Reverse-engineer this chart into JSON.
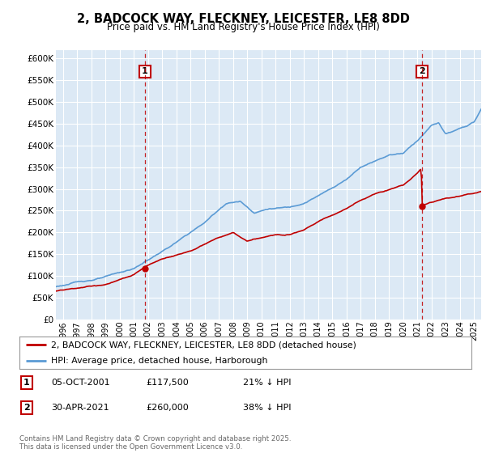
{
  "title": "2, BADCOCK WAY, FLECKNEY, LEICESTER, LE8 8DD",
  "subtitle": "Price paid vs. HM Land Registry's House Price Index (HPI)",
  "ylim": [
    0,
    620000
  ],
  "yticks": [
    0,
    50000,
    100000,
    150000,
    200000,
    250000,
    300000,
    350000,
    400000,
    450000,
    500000,
    550000,
    600000
  ],
  "sale1_x": 2001.78,
  "sale1_y": 117500,
  "sale1_label": "1",
  "sale2_x": 2021.33,
  "sale2_y": 260000,
  "sale2_label": "2",
  "hpi_color": "#5b9bd5",
  "price_color": "#c00000",
  "vline_color": "#c00000",
  "chart_bg": "#dce9f5",
  "background_color": "#ffffff",
  "grid_color": "#ffffff",
  "legend_label_price": "2, BADCOCK WAY, FLECKNEY, LEICESTER, LE8 8DD (detached house)",
  "legend_label_hpi": "HPI: Average price, detached house, Harborough",
  "annotation_table": [
    {
      "num": "1",
      "date": "05-OCT-2001",
      "price": "£117,500",
      "pct": "21% ↓ HPI"
    },
    {
      "num": "2",
      "date": "30-APR-2021",
      "price": "£260,000",
      "pct": "38% ↓ HPI"
    }
  ],
  "footer": "Contains HM Land Registry data © Crown copyright and database right 2025.\nThis data is licensed under the Open Government Licence v3.0.",
  "xmin": 1995.5,
  "xmax": 2025.5
}
